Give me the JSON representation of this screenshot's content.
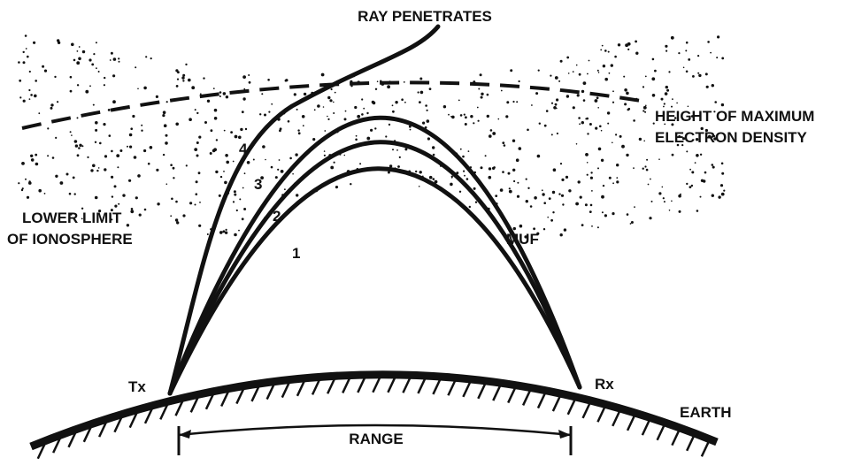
{
  "title": "RAY PENETRATES",
  "max_density_label": [
    "HEIGHT OF MAXIMUM",
    "ELECTRON DENSITY"
  ],
  "lower_limit_label": [
    "LOWER LIMIT",
    "OF IONOSPHERE"
  ],
  "muf_label": "MUF",
  "tx_label": "Tx",
  "rx_label": "Rx",
  "earth_label": "EARTH",
  "range_label": "RANGE",
  "ray_numbers": [
    "1",
    "2",
    "3",
    "4"
  ]
}
